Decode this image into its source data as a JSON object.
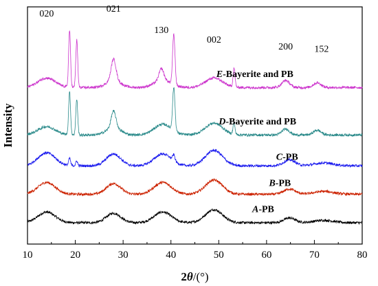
{
  "chart_data": {
    "type": "line",
    "title": "",
    "ylabel": "Intensity",
    "xlabel": {
      "prefix": "2",
      "theta": "θ",
      "suffix": "/(°)"
    },
    "xlim": [
      10,
      80
    ],
    "ylim": [
      0,
      100
    ],
    "x_ticks": [
      10,
      20,
      30,
      40,
      50,
      60,
      70,
      80
    ],
    "grid": false,
    "legend": "inline labels at right",
    "series": [
      {
        "name": "A-PB",
        "label_letter": "A",
        "label_rest": "-PB",
        "color": "#000000",
        "offset": 9,
        "peaks": [
          [
            14,
            4.5,
            1.8
          ],
          [
            28,
            4,
            1.5
          ],
          [
            38.3,
            4.5,
            1.8
          ],
          [
            49,
            5.5,
            1.8
          ],
          [
            64.8,
            2,
            1.2
          ],
          [
            72,
            1,
            2
          ]
        ]
      },
      {
        "name": "B-PB",
        "label_letter": "B",
        "label_rest": "-PB",
        "color": "#cc2200",
        "offset": 21,
        "peaks": [
          [
            14,
            5,
            1.8
          ],
          [
            28,
            4.5,
            1.5
          ],
          [
            38.3,
            5,
            1.8
          ],
          [
            49,
            6,
            1.8
          ],
          [
            64.8,
            2.2,
            1.2
          ],
          [
            72,
            1.2,
            2
          ]
        ]
      },
      {
        "name": "C-PB",
        "label_letter": "C",
        "label_rest": "-PB",
        "color": "#1a1aee",
        "offset": 33,
        "peaks": [
          [
            14,
            5.5,
            1.8
          ],
          [
            18.8,
            3,
            0.2
          ],
          [
            20.3,
            2,
            0.2
          ],
          [
            28,
            5,
            1.5
          ],
          [
            38.3,
            5,
            1.8
          ],
          [
            40.6,
            2.5,
            0.25
          ],
          [
            49,
            6.5,
            1.8
          ],
          [
            64.8,
            2.5,
            1.2
          ],
          [
            72,
            1.2,
            2
          ]
        ]
      },
      {
        "name": "D-Bayerite and PB",
        "label_letter": "D",
        "label_rest": "-Bayerite and PB",
        "color": "#2a8a8a",
        "offset": 46,
        "peaks": [
          [
            14,
            3.5,
            1.8
          ],
          [
            18.8,
            18,
            0.2
          ],
          [
            20.3,
            15,
            0.2
          ],
          [
            28,
            7,
            0.5
          ],
          [
            28,
            3,
            1.5
          ],
          [
            38.3,
            4.5,
            1.8
          ],
          [
            40.6,
            18,
            0.25
          ],
          [
            49,
            5,
            1.8
          ],
          [
            53.2,
            5,
            0.2
          ],
          [
            64,
            2.5,
            0.8
          ],
          [
            70.6,
            2,
            0.8
          ]
        ]
      },
      {
        "name": "E-Bayerite and PB",
        "label_letter": "E",
        "label_rest": "-Bayerite and PB",
        "color": "#cc33cc",
        "offset": 66,
        "peaks": [
          [
            14,
            4,
            1.8
          ],
          [
            18.8,
            24,
            0.2
          ],
          [
            20.3,
            20,
            0.2
          ],
          [
            28,
            9,
            0.5
          ],
          [
            28,
            3,
            1.5
          ],
          [
            38,
            5,
            0.5
          ],
          [
            38.3,
            3,
            1.8
          ],
          [
            40.6,
            21,
            0.25
          ],
          [
            49,
            4,
            1.8
          ],
          [
            53.2,
            8,
            0.2
          ],
          [
            64,
            3,
            0.8
          ],
          [
            70.6,
            2,
            0.8
          ]
        ]
      }
    ],
    "peak_annotations": [
      {
        "text": "020",
        "x": 14,
        "y": 96
      },
      {
        "text": "021",
        "x": 28,
        "y": 98
      },
      {
        "text": "130",
        "x": 38,
        "y": 89
      },
      {
        "text": "002",
        "x": 49,
        "y": 85
      },
      {
        "text": "200",
        "x": 64,
        "y": 82
      },
      {
        "text": "152",
        "x": 71.5,
        "y": 81
      }
    ]
  }
}
